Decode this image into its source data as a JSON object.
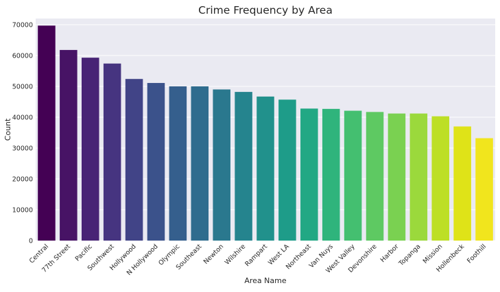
{
  "chart_data": {
    "type": "bar",
    "title": "Crime Frequency by Area",
    "xlabel": "Area Name",
    "ylabel": "Count",
    "ylim": [
      0,
      72000
    ],
    "yticks": [
      0,
      10000,
      20000,
      30000,
      40000,
      50000,
      60000,
      70000
    ],
    "grid": true,
    "background": "#eaeaf2",
    "gridColor": "#ffffff",
    "categories": [
      "Central",
      "77th Street",
      "Pacific",
      "Southwest",
      "Hollywood",
      "N Hollywood",
      "Olympic",
      "Southeast",
      "Newton",
      "Wilshire",
      "Rampart",
      "West LA",
      "Northeast",
      "Van Nuys",
      "West Valley",
      "Devonshire",
      "Harbor",
      "Topanga",
      "Mission",
      "Hollenbeck",
      "Foothill"
    ],
    "values": [
      69700,
      61800,
      59300,
      57400,
      52400,
      51100,
      50000,
      50000,
      49000,
      48200,
      46700,
      45700,
      42800,
      42700,
      42100,
      41700,
      41200,
      41200,
      40300,
      37000,
      33200
    ],
    "colors": [
      "#440154",
      "#471365",
      "#482475",
      "#463480",
      "#414487",
      "#3b528b",
      "#355f8d",
      "#2f6c8e",
      "#2a788e",
      "#25848e",
      "#21918c",
      "#1e9c89",
      "#22a884",
      "#2fb47c",
      "#44bf70",
      "#5ec962",
      "#7ad151",
      "#9bd93c",
      "#bddf26",
      "#dfe318",
      "#f1e51d"
    ]
  }
}
